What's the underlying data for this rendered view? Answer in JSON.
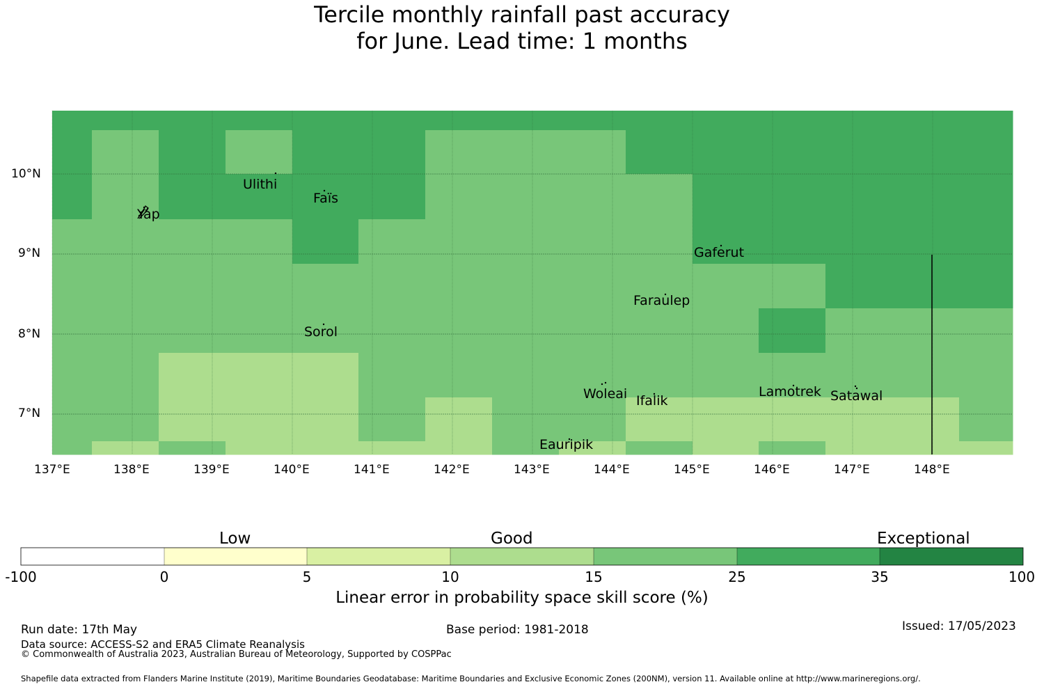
{
  "title": {
    "line1": "Tercile monthly rainfall past accuracy",
    "line2": "for June. Lead time: 1 months"
  },
  "map": {
    "lon_labels": [
      "137°E",
      "138°E",
      "139°E",
      "140°E",
      "141°E",
      "142°E",
      "143°E",
      "144°E",
      "145°E",
      "146°E",
      "147°E",
      "148°E"
    ],
    "lat_labels": [
      "10°N",
      "9°N",
      "8°N",
      "7°N"
    ],
    "places": {
      "yap": "Yap",
      "ulithi": "Ulithi",
      "fais": "Faïs",
      "gaferut": "Gaferut",
      "faraulep": "Faraulep",
      "sorol": "Sorol",
      "woleai": "Woleai",
      "ifalik": "Ifalik",
      "lamotrek": "Lamotrek",
      "satawal": "Satawal",
      "eauripik": "Eauripik"
    }
  },
  "legend": {
    "categories": {
      "low": "Low",
      "good": "Good",
      "exceptional": "Exceptional"
    },
    "ticks": [
      "-100",
      "0",
      "5",
      "10",
      "15",
      "25",
      "35",
      "100"
    ],
    "colors": [
      "#ffffff",
      "#ffffcc",
      "#d9f0a3",
      "#addd8e",
      "#78c679",
      "#41ab5d",
      "#238443"
    ],
    "label": "Linear error in probability space skill score (%)"
  },
  "footer": {
    "run_date": "Run date: 17th May",
    "base_period": "Base period: 1981-2018",
    "issued": "Issued: 17/05/2023",
    "data_source": "Data source: ACCESS-S2 and ERA5 Climate Reanalysis",
    "copyright": "© Commonwealth of Australia 2023, Australian Bureau of Meteorology, Supported by COSPPac",
    "shapefile": "Shapefile data extracted from Flanders Marine Institute (2019), Maritime Boundaries Geodatabase: Maritime Boundaries and Exclusive Economic Zones (200NM), version 11. Available online at http://www.marineregions.org/."
  }
}
